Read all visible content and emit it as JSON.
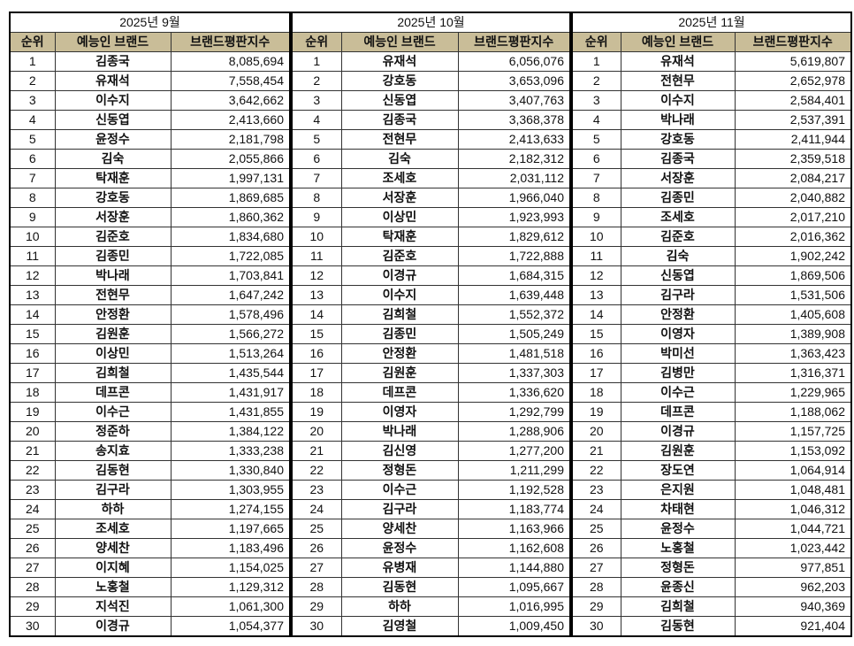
{
  "columns": {
    "rank": "순위",
    "name": "예능인 브랜드",
    "score": "브랜드평판지수"
  },
  "header_color": "#c9bd98",
  "panels": [
    {
      "month": "2025년 9월",
      "rows": [
        [
          "1",
          "김종국",
          "8,085,694"
        ],
        [
          "2",
          "유재석",
          "7,558,454"
        ],
        [
          "3",
          "이수지",
          "3,642,662"
        ],
        [
          "4",
          "신동엽",
          "2,413,660"
        ],
        [
          "5",
          "윤정수",
          "2,181,798"
        ],
        [
          "6",
          "김숙",
          "2,055,866"
        ],
        [
          "7",
          "탁재훈",
          "1,997,131"
        ],
        [
          "8",
          "강호동",
          "1,869,685"
        ],
        [
          "9",
          "서장훈",
          "1,860,362"
        ],
        [
          "10",
          "김준호",
          "1,834,680"
        ],
        [
          "11",
          "김종민",
          "1,722,085"
        ],
        [
          "12",
          "박나래",
          "1,703,841"
        ],
        [
          "13",
          "전현무",
          "1,647,242"
        ],
        [
          "14",
          "안정환",
          "1,578,496"
        ],
        [
          "15",
          "김원훈",
          "1,566,272"
        ],
        [
          "16",
          "이상민",
          "1,513,264"
        ],
        [
          "17",
          "김희철",
          "1,435,544"
        ],
        [
          "18",
          "데프콘",
          "1,431,917"
        ],
        [
          "19",
          "이수근",
          "1,431,855"
        ],
        [
          "20",
          "정준하",
          "1,384,122"
        ],
        [
          "21",
          "송지효",
          "1,333,238"
        ],
        [
          "22",
          "김동현",
          "1,330,840"
        ],
        [
          "23",
          "김구라",
          "1,303,955"
        ],
        [
          "24",
          "하하",
          "1,274,155"
        ],
        [
          "25",
          "조세호",
          "1,197,665"
        ],
        [
          "26",
          "양세찬",
          "1,183,496"
        ],
        [
          "27",
          "이지혜",
          "1,154,025"
        ],
        [
          "28",
          "노홍철",
          "1,129,312"
        ],
        [
          "29",
          "지석진",
          "1,061,300"
        ],
        [
          "30",
          "이경규",
          "1,054,377"
        ]
      ]
    },
    {
      "month": "2025년 10월",
      "rows": [
        [
          "1",
          "유재석",
          "6,056,076"
        ],
        [
          "2",
          "강호동",
          "3,653,096"
        ],
        [
          "3",
          "신동엽",
          "3,407,763"
        ],
        [
          "4",
          "김종국",
          "3,368,378"
        ],
        [
          "5",
          "전현무",
          "2,413,633"
        ],
        [
          "6",
          "김숙",
          "2,182,312"
        ],
        [
          "7",
          "조세호",
          "2,031,112"
        ],
        [
          "8",
          "서장훈",
          "1,966,040"
        ],
        [
          "9",
          "이상민",
          "1,923,993"
        ],
        [
          "10",
          "탁재훈",
          "1,829,612"
        ],
        [
          "11",
          "김준호",
          "1,722,888"
        ],
        [
          "12",
          "이경규",
          "1,684,315"
        ],
        [
          "13",
          "이수지",
          "1,639,448"
        ],
        [
          "14",
          "김희철",
          "1,552,372"
        ],
        [
          "15",
          "김종민",
          "1,505,249"
        ],
        [
          "16",
          "안정환",
          "1,481,518"
        ],
        [
          "17",
          "김원훈",
          "1,337,303"
        ],
        [
          "18",
          "데프콘",
          "1,336,620"
        ],
        [
          "19",
          "이영자",
          "1,292,799"
        ],
        [
          "20",
          "박나래",
          "1,288,906"
        ],
        [
          "21",
          "김신영",
          "1,277,200"
        ],
        [
          "22",
          "정형돈",
          "1,211,299"
        ],
        [
          "23",
          "이수근",
          "1,192,528"
        ],
        [
          "24",
          "김구라",
          "1,183,774"
        ],
        [
          "25",
          "양세찬",
          "1,163,966"
        ],
        [
          "26",
          "윤정수",
          "1,162,608"
        ],
        [
          "27",
          "유병재",
          "1,144,880"
        ],
        [
          "28",
          "김동현",
          "1,095,667"
        ],
        [
          "29",
          "하하",
          "1,016,995"
        ],
        [
          "30",
          "김영철",
          "1,009,450"
        ]
      ]
    },
    {
      "month": "2025년 11월",
      "rows": [
        [
          "1",
          "유재석",
          "5,619,807"
        ],
        [
          "2",
          "전현무",
          "2,652,978"
        ],
        [
          "3",
          "이수지",
          "2,584,401"
        ],
        [
          "4",
          "박나래",
          "2,537,391"
        ],
        [
          "5",
          "강호동",
          "2,411,944"
        ],
        [
          "6",
          "김종국",
          "2,359,518"
        ],
        [
          "7",
          "서장훈",
          "2,084,217"
        ],
        [
          "8",
          "김종민",
          "2,040,882"
        ],
        [
          "9",
          "조세호",
          "2,017,210"
        ],
        [
          "10",
          "김준호",
          "2,016,362"
        ],
        [
          "11",
          "김숙",
          "1,902,242"
        ],
        [
          "12",
          "신동엽",
          "1,869,506"
        ],
        [
          "13",
          "김구라",
          "1,531,506"
        ],
        [
          "14",
          "안정환",
          "1,405,608"
        ],
        [
          "15",
          "이영자",
          "1,389,908"
        ],
        [
          "16",
          "박미선",
          "1,363,423"
        ],
        [
          "17",
          "김병만",
          "1,316,371"
        ],
        [
          "18",
          "이수근",
          "1,229,965"
        ],
        [
          "19",
          "데프콘",
          "1,188,062"
        ],
        [
          "20",
          "이경규",
          "1,157,725"
        ],
        [
          "21",
          "김원훈",
          "1,153,092"
        ],
        [
          "22",
          "장도연",
          "1,064,914"
        ],
        [
          "23",
          "은지원",
          "1,048,481"
        ],
        [
          "24",
          "차태현",
          "1,046,312"
        ],
        [
          "25",
          "윤정수",
          "1,044,721"
        ],
        [
          "26",
          "노홍철",
          "1,023,442"
        ],
        [
          "27",
          "정형돈",
          "977,851"
        ],
        [
          "28",
          "윤종신",
          "962,203"
        ],
        [
          "29",
          "김희철",
          "940,369"
        ],
        [
          "30",
          "김동현",
          "921,404"
        ]
      ]
    }
  ]
}
